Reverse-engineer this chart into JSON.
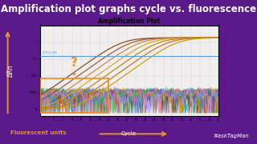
{
  "title_main": "Amplification plot graphs cycle vs. fluorescence",
  "plot_title": "Amplification Plot",
  "bg_color": "#5a1a8a",
  "plot_bg": "#f0eeee",
  "threshold_value": 0.151194,
  "threshold_color": "#5b9bd5",
  "highlight_box_color": "#e8922a",
  "question_mark_color": "#e8922a",
  "footer_left": "Fluorescent units",
  "footer_center": "Cycle",
  "footer_right": "#askTagMan",
  "ylabel": "ΔRn",
  "noisy_colors": [
    "#e74c3c",
    "#2ecc71",
    "#3498db",
    "#9b59b6",
    "#1abc9c",
    "#e67e22",
    "#f39c12",
    "#27ae60",
    "#8e44ad",
    "#2980b9",
    "#16a085",
    "#d35400",
    "#c0392b",
    "#7f8c8d",
    "#2c3e50",
    "#f1c40f",
    "#00b894",
    "#6c5ce7",
    "#fd79a8",
    "#a29bfe"
  ],
  "sigmoid_colors": [
    "#8B4513",
    "#A0522D",
    "#CD853F",
    "#DAA520",
    "#B8860B",
    "#D2691E",
    "#C8A000"
  ],
  "title_fontsize": 8.5,
  "plot_title_fontsize": 5.5,
  "footer_fontsize": 5.0,
  "ylabel_fontsize": 5.5,
  "threshold_label": "0.151194",
  "num_noisy_lines": 20,
  "ct_values": [
    19,
    21,
    23,
    25,
    27,
    29,
    31
  ],
  "ylim_low": 4e-05,
  "ylim_high": 4.0,
  "xlim_low": 1,
  "xlim_high": 40
}
